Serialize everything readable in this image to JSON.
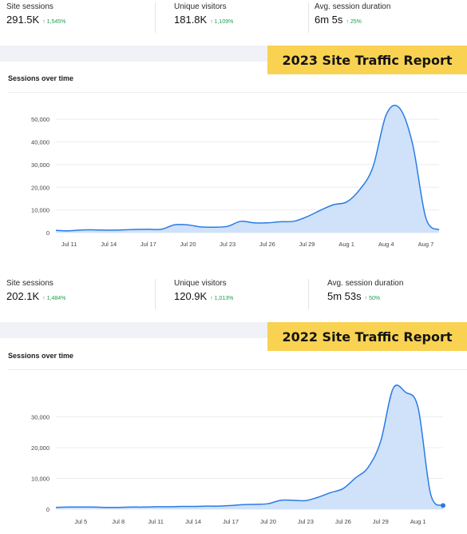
{
  "reports": [
    {
      "banner": "2023 Site Traffic Report",
      "panel_title": "Sessions over time",
      "stats": [
        {
          "label": "Site sessions",
          "value": "291.5K",
          "change": "↑ 1,545%"
        },
        {
          "label": "Unique visitors",
          "value": "181.8K",
          "change": "↑ 1,109%"
        },
        {
          "label": "Avg. session duration",
          "value": "6m 5s",
          "change": "↑ 25%"
        }
      ]
    },
    {
      "banner": "2022 Site Traffic Report",
      "panel_title": "Sessions over time",
      "stats": [
        {
          "label": "Site sessions",
          "value": "202.1K",
          "change": "↑ 1,484%"
        },
        {
          "label": "Unique visitors",
          "value": "120.9K",
          "change": "↑ 1,013%"
        },
        {
          "label": "Avg. session duration",
          "value": "5m 53s",
          "change": "↑ 50%"
        }
      ]
    }
  ],
  "colors": {
    "line": "#2a7be4",
    "fill": "#cfe2fa",
    "accent": "#f9d252",
    "positive": "#1aa24f"
  },
  "chart_data": [
    {
      "type": "area",
      "title": "Sessions over time",
      "xlabel": "",
      "ylabel": "",
      "ylim": [
        0,
        55000
      ],
      "yticks": [
        0,
        10000,
        20000,
        30000,
        40000,
        50000
      ],
      "ytick_labels": [
        "0",
        "10,000",
        "20,000",
        "30,000",
        "40,000",
        "50,000"
      ],
      "xtick_labels": [
        "Jul 11",
        "Jul 14",
        "Jul 17",
        "Jul 20",
        "Jul 23",
        "Jul 26",
        "Jul 29",
        "Aug 1",
        "Aug 4",
        "Aug 7"
      ],
      "grid": true,
      "x": [
        "Jul 10",
        "Jul 11",
        "Jul 12",
        "Jul 13",
        "Jul 14",
        "Jul 15",
        "Jul 16",
        "Jul 17",
        "Jul 18",
        "Jul 19",
        "Jul 20",
        "Jul 21",
        "Jul 22",
        "Jul 23",
        "Jul 24",
        "Jul 25",
        "Jul 26",
        "Jul 27",
        "Jul 28",
        "Jul 29",
        "Jul 30",
        "Jul 31",
        "Aug 1",
        "Aug 2",
        "Aug 3",
        "Aug 4",
        "Aug 5",
        "Aug 6",
        "Aug 7",
        "Aug 8"
      ],
      "series": [
        {
          "values": [
            1000,
            800,
            1200,
            1200,
            1100,
            1200,
            1400,
            1500,
            1500,
            3500,
            3400,
            2500,
            2400,
            2800,
            5000,
            4300,
            4300,
            4800,
            5000,
            7000,
            9800,
            12300,
            13500,
            19000,
            29000,
            52000,
            55000,
            39000,
            6500,
            1200
          ]
        }
      ]
    },
    {
      "type": "area",
      "title": "Sessions over time",
      "xlabel": "",
      "ylabel": "",
      "ylim": [
        0,
        40000
      ],
      "yticks": [
        0,
        10000,
        20000,
        30000
      ],
      "ytick_labels": [
        "0",
        "10,000",
        "20,000",
        "30,000"
      ],
      "xtick_labels": [
        "Jul 5",
        "Jul 8",
        "Jul 11",
        "Jul 14",
        "Jul 17",
        "Jul 20",
        "Jul 23",
        "Jul 26",
        "Jul 29",
        "Aug 1"
      ],
      "grid": true,
      "x": [
        "Jul 3",
        "Jul 4",
        "Jul 5",
        "Jul 6",
        "Jul 7",
        "Jul 8",
        "Jul 9",
        "Jul 10",
        "Jul 11",
        "Jul 12",
        "Jul 13",
        "Jul 14",
        "Jul 15",
        "Jul 16",
        "Jul 17",
        "Jul 18",
        "Jul 19",
        "Jul 20",
        "Jul 21",
        "Jul 22",
        "Jul 23",
        "Jul 24",
        "Jul 25",
        "Jul 26",
        "Jul 27",
        "Jul 28",
        "Jul 29",
        "Jul 30",
        "Jul 31",
        "Aug 1",
        "Aug 2",
        "Aug 3"
      ],
      "series": [
        {
          "values": [
            600,
            700,
            700,
            700,
            600,
            600,
            700,
            700,
            800,
            800,
            900,
            900,
            1000,
            1000,
            1200,
            1500,
            1600,
            1800,
            2900,
            2900,
            2800,
            3900,
            5400,
            6700,
            10200,
            13600,
            22000,
            39200,
            38000,
            33000,
            5000,
            1200
          ]
        }
      ]
    }
  ]
}
